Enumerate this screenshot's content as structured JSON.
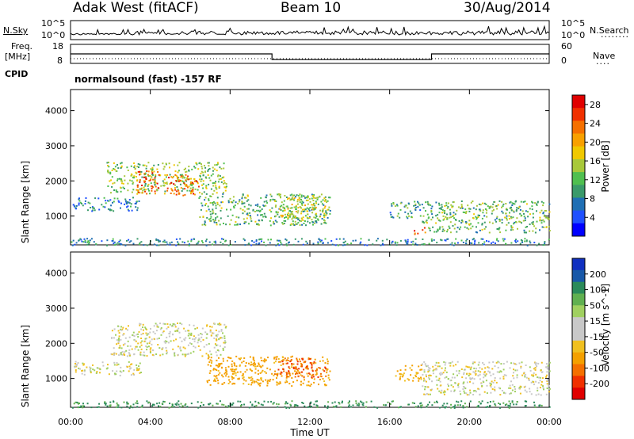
{
  "header": {
    "station": "Adak West (fitACF)",
    "beam": "Beam 10",
    "date": "30/Aug/2014"
  },
  "status_panel": {
    "nsky_label": "N.Sky",
    "nsearch_label": "N.Search",
    "freq_label_line1": "Freq.",
    "freq_label_line2": "[MHz]",
    "nave_label": "Nave",
    "cpid_label": "CPID",
    "cpid_value": "normalsound (fast) -157 RF",
    "noise_ticks_left": [
      "10^5",
      "10^0"
    ],
    "noise_ticks_right": [
      "10^5",
      "10^0"
    ],
    "freq_ticks": [
      "18",
      "8"
    ],
    "nave_ticks": [
      "60",
      "0"
    ]
  },
  "chart_data": [
    {
      "type": "heatmap",
      "panel": "power",
      "ylabel": "Slant Range [km]",
      "xlabel": "",
      "xlim": [
        0,
        24
      ],
      "ylim": [
        180,
        4600
      ],
      "yticks": [
        1000,
        2000,
        3000,
        4000
      ],
      "colorbar": {
        "label": "Power [dB]",
        "ticks": [
          4,
          8,
          12,
          16,
          20,
          24,
          28
        ],
        "range": [
          0,
          30
        ],
        "colors": [
          "#0000ff",
          "#1f50ff",
          "#1f6fb4",
          "#3a9a6a",
          "#4fbf4f",
          "#a8c83a",
          "#f0c800",
          "#f8a000",
          "#f57000",
          "#f03000",
          "#e00000"
        ]
      },
      "regions": [
        {
          "t0": 1.8,
          "t1": 7.8,
          "r0": 1650,
          "r1": 2550,
          "level": 14
        },
        {
          "t0": 0.1,
          "t1": 3.5,
          "r0": 1150,
          "r1": 1550,
          "level": 8
        },
        {
          "t0": 3.2,
          "t1": 4.4,
          "r0": 1650,
          "r1": 2300,
          "level": 24
        },
        {
          "t0": 4.8,
          "t1": 6.4,
          "r0": 1600,
          "r1": 2200,
          "level": 24
        },
        {
          "t0": 6.4,
          "t1": 13.0,
          "r0": 750,
          "r1": 1650,
          "level": 12
        },
        {
          "t0": 10.2,
          "t1": 12.8,
          "r0": 950,
          "r1": 1600,
          "level": 16
        },
        {
          "t0": 16.0,
          "t1": 17.6,
          "r0": 950,
          "r1": 1450,
          "level": 10
        },
        {
          "t0": 17.6,
          "t1": 24.0,
          "r0": 550,
          "r1": 1450,
          "level": 12
        },
        {
          "t0": 17.2,
          "t1": 17.8,
          "r0": 500,
          "r1": 700,
          "level": 26
        },
        {
          "t0": 0.0,
          "t1": 24.0,
          "r0": 180,
          "r1": 380,
          "level": 8
        }
      ],
      "time_axis": {
        "ticks": [
          "00:00",
          "04:00",
          "08:00",
          "12:00",
          "16:00",
          "20:00",
          "00:00"
        ],
        "tick_hours": [
          0,
          4,
          8,
          12,
          16,
          20,
          24
        ]
      }
    },
    {
      "type": "heatmap",
      "panel": "velocity",
      "ylabel": "Slant Range [km]",
      "xlabel": "Time UT",
      "xlim": [
        0,
        24
      ],
      "ylim": [
        180,
        4600
      ],
      "yticks": [
        1000,
        2000,
        3000,
        4000
      ],
      "colorbar": {
        "label": "Velocity [m s^-1]",
        "ticks": [
          200,
          100,
          50,
          15,
          -15,
          -50,
          -100,
          -200
        ],
        "colors": [
          "#1030c0",
          "#1858a8",
          "#2a8a5a",
          "#60b050",
          "#a0d060",
          "#c8c8c8",
          "#c8c8c8",
          "#f0c020",
          "#f4a000",
          "#f47000",
          "#f03000",
          "#e00000"
        ]
      },
      "regions": [
        {
          "t0": 0.1,
          "t1": 3.5,
          "r0": 1100,
          "r1": 1500,
          "velocity": 0
        },
        {
          "t0": 2.0,
          "t1": 7.8,
          "r0": 1650,
          "r1": 2600,
          "velocity": 0
        },
        {
          "t0": 6.8,
          "t1": 13.0,
          "r0": 800,
          "r1": 1650,
          "velocity": -70
        },
        {
          "t0": 10.2,
          "t1": 12.8,
          "r0": 1050,
          "r1": 1600,
          "velocity": -150
        },
        {
          "t0": 16.2,
          "t1": 17.6,
          "r0": 950,
          "r1": 1400,
          "velocity": -60
        },
        {
          "t0": 17.6,
          "t1": 24.0,
          "r0": 550,
          "r1": 1500,
          "velocity": 0
        },
        {
          "t0": 0.0,
          "t1": 24.0,
          "r0": 180,
          "r1": 380,
          "velocity": 60
        }
      ],
      "time_axis": {
        "ticks": [
          "00:00",
          "04:00",
          "08:00",
          "12:00",
          "16:00",
          "20:00",
          "00:00"
        ],
        "tick_hours": [
          0,
          4,
          8,
          12,
          16,
          20,
          24
        ]
      }
    }
  ],
  "frequency_trace": [
    {
      "t0": 0,
      "t1": 10.1,
      "mhz": 13
    },
    {
      "t0": 10.1,
      "t1": 18.1,
      "mhz": 10
    },
    {
      "t0": 18.1,
      "t1": 24,
      "mhz": 13
    }
  ]
}
